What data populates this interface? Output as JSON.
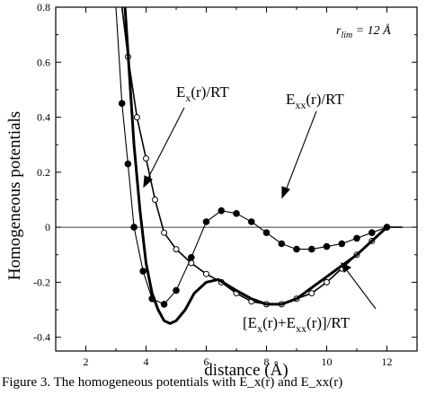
{
  "chart_data": {
    "type": "line",
    "xlabel": "distance (Å)",
    "ylabel": "Homogeneous potentials",
    "xlim": [
      1,
      13
    ],
    "ylim": [
      -0.45,
      0.8
    ],
    "x_ticks": [
      2,
      4,
      6,
      8,
      10,
      12
    ],
    "x_tick_labels": [
      "2",
      "4",
      "6",
      "8",
      "10",
      "12"
    ],
    "y_ticks": [
      -0.4,
      -0.2,
      0,
      0.2,
      0.4,
      0.6,
      0.8
    ],
    "y_tick_labels": [
      "-0.4",
      "-0.2",
      "0",
      "0.2",
      "0.4",
      "0.6",
      "0.8"
    ],
    "zero_line": true,
    "corner_label": {
      "main": "r",
      "sub": "lim",
      "rest": " = 12 Å"
    },
    "series": [
      {
        "key": "ex",
        "color": "#000000",
        "stroke_px": 1.6,
        "marker": "open-circle",
        "label": {
          "base": "E",
          "sub": "x",
          "rest": "(r)/RT"
        },
        "x": [
          3.2,
          3.4,
          3.7,
          4.0,
          4.3,
          4.6,
          5.0,
          5.5,
          6.0,
          6.5,
          7.0,
          7.5,
          8.0,
          8.5,
          9.0,
          9.5,
          10.0,
          10.5,
          11.0,
          11.5,
          12.0,
          12.5
        ],
        "y": [
          0.8,
          0.62,
          0.4,
          0.25,
          0.1,
          -0.02,
          -0.08,
          -0.13,
          -0.17,
          -0.2,
          -0.24,
          -0.27,
          -0.28,
          -0.28,
          -0.26,
          -0.24,
          -0.2,
          -0.15,
          -0.1,
          -0.05,
          0.0,
          0.0
        ]
      },
      {
        "key": "exx",
        "color": "#000000",
        "stroke_px": 1.1,
        "marker": "filled-circle",
        "label": {
          "base": "E",
          "sub": "xx",
          "rest": "(r)/RT"
        },
        "x": [
          3.0,
          3.2,
          3.4,
          3.6,
          3.9,
          4.2,
          4.6,
          5.0,
          5.5,
          6.0,
          6.5,
          7.0,
          7.5,
          8.0,
          8.5,
          9.0,
          9.5,
          10.0,
          10.5,
          11.0,
          11.5,
          12.0,
          12.5
        ],
        "y": [
          0.8,
          0.45,
          0.23,
          0.0,
          -0.16,
          -0.26,
          -0.28,
          -0.23,
          -0.11,
          0.02,
          0.06,
          0.05,
          0.02,
          -0.02,
          -0.06,
          -0.08,
          -0.08,
          -0.07,
          -0.06,
          -0.04,
          -0.02,
          0.0,
          0.0
        ]
      },
      {
        "key": "sum",
        "color": "#000000",
        "stroke_px": 3.0,
        "marker": "none",
        "label": {
          "open": "[",
          "base1": "E",
          "sub1": "x",
          "mid": "(r)+",
          "base2": "E",
          "sub2": "xx",
          "rest": "(r)]/RT"
        },
        "x": [
          3.3,
          3.45,
          3.6,
          3.8,
          4.0,
          4.2,
          4.4,
          4.6,
          4.8,
          5.0,
          5.3,
          5.6,
          6.0,
          6.4,
          6.7,
          7.0,
          7.5,
          8.0,
          8.5,
          9.0,
          9.5,
          10.0,
          10.5,
          11.0,
          11.5,
          12.0
        ],
        "y": [
          0.8,
          0.55,
          0.3,
          0.06,
          -0.13,
          -0.24,
          -0.3,
          -0.34,
          -0.35,
          -0.34,
          -0.3,
          -0.24,
          -0.2,
          -0.19,
          -0.21,
          -0.23,
          -0.26,
          -0.28,
          -0.28,
          -0.26,
          -0.22,
          -0.18,
          -0.14,
          -0.1,
          -0.05,
          0.0
        ]
      }
    ]
  },
  "caption_fragment": "Figure 3. The homogeneous potentials with E_x(r) and E_xx(r)"
}
